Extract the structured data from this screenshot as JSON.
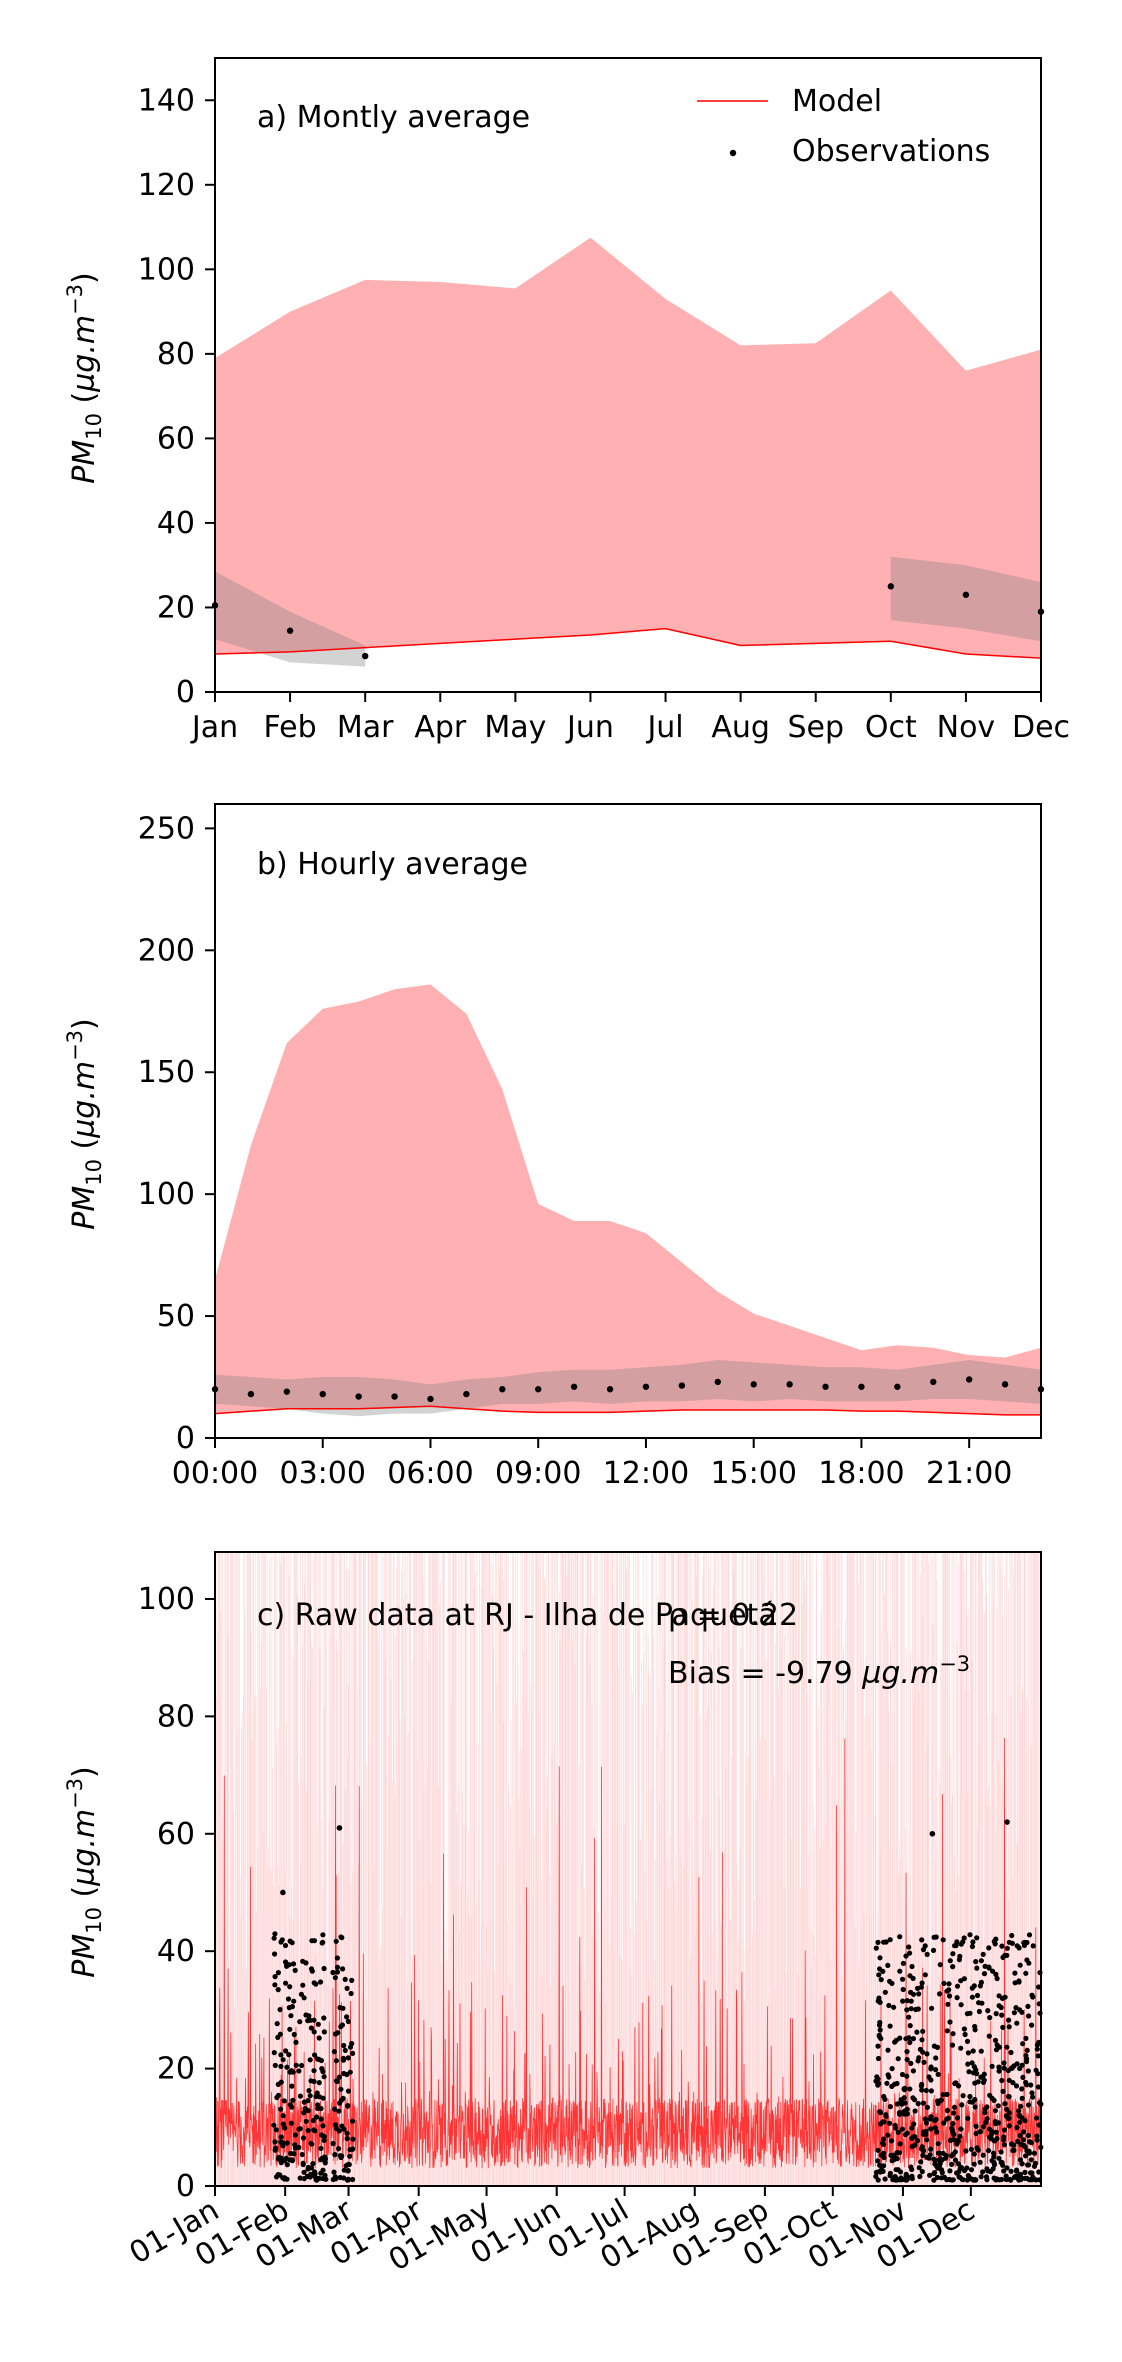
{
  "chart_data": [
    {
      "type": "area",
      "panel_label": "a) Montly average",
      "ylabel": "PM10 (µg.m-3)",
      "xlabel": "",
      "categories": [
        "Jan",
        "Feb",
        "Mar",
        "Apr",
        "May",
        "Jun",
        "Jul",
        "Aug",
        "Sep",
        "Oct",
        "Nov",
        "Dec"
      ],
      "ylim": [
        0,
        150
      ],
      "yticks": [
        0,
        20,
        40,
        60,
        80,
        100,
        120,
        140
      ],
      "legend": {
        "position": "top-right",
        "entries": [
          "Model",
          "Observations"
        ]
      },
      "series": [
        {
          "name": "Model",
          "kind": "line",
          "color": "#ff0000",
          "values": [
            9,
            9.5,
            10.5,
            11.5,
            12.5,
            13.5,
            15,
            11,
            11.5,
            12,
            9,
            8
          ]
        },
        {
          "name": "Model",
          "kind": "band",
          "color": "#ffb0b2",
          "upper": [
            79,
            90,
            97.5,
            97,
            95.5,
            107.5,
            93,
            82,
            82.5,
            95,
            76,
            81
          ],
          "lower": [
            9,
            9.5,
            10.5,
            11.5,
            12.5,
            13.5,
            15,
            11,
            11.5,
            12,
            9,
            8
          ]
        },
        {
          "name": "Observations",
          "kind": "points",
          "color": "#000000",
          "values": [
            20.5,
            14.5,
            8.5,
            null,
            null,
            null,
            null,
            null,
            null,
            25,
            23,
            19
          ]
        },
        {
          "name": "Observations",
          "kind": "band",
          "color": "#808080",
          "upper": [
            28.5,
            19,
            11,
            null,
            null,
            null,
            null,
            null,
            null,
            32,
            30,
            26
          ],
          "lower": [
            12.5,
            7,
            6,
            null,
            null,
            null,
            null,
            null,
            null,
            17,
            15,
            12
          ]
        }
      ]
    },
    {
      "type": "area",
      "panel_label": "b) Hourly average",
      "ylabel": "PM10 (µg.m-3)",
      "xlabel": "",
      "x": [
        0,
        1,
        2,
        3,
        4,
        5,
        6,
        7,
        8,
        9,
        10,
        11,
        12,
        13,
        14,
        15,
        16,
        17,
        18,
        19,
        20,
        21,
        22,
        23
      ],
      "xtick_labels": [
        "00:00",
        "03:00",
        "06:00",
        "09:00",
        "12:00",
        "15:00",
        "18:00",
        "21:00"
      ],
      "xticks": [
        0,
        3,
        6,
        9,
        12,
        15,
        18,
        21
      ],
      "ylim": [
        0,
        260
      ],
      "yticks": [
        0,
        50,
        100,
        150,
        200,
        250
      ],
      "series": [
        {
          "name": "Model",
          "kind": "line",
          "color": "#ff0000",
          "values": [
            10,
            11,
            12,
            12,
            12,
            12.5,
            13,
            12,
            11,
            10.5,
            10.5,
            10.5,
            11,
            11.5,
            11.5,
            11.5,
            11.5,
            11.5,
            11,
            11,
            10.5,
            10,
            9.5,
            9.5
          ]
        },
        {
          "name": "Model",
          "kind": "band",
          "color": "#ffb0b2",
          "upper": [
            65,
            120,
            162,
            176,
            179,
            184,
            186,
            174,
            143,
            96,
            89,
            89,
            84,
            72,
            60,
            51,
            46,
            41,
            36,
            38,
            37,
            34,
            33,
            37
          ],
          "lower": [
            10,
            11,
            12,
            12,
            12,
            12.5,
            13,
            12,
            11,
            10.5,
            10.5,
            10.5,
            11,
            11.5,
            11.5,
            11.5,
            11.5,
            11.5,
            11,
            11,
            10.5,
            10,
            9.5,
            9.5
          ]
        },
        {
          "name": "Observations",
          "kind": "points",
          "color": "#000000",
          "values": [
            20,
            18,
            19,
            18,
            17,
            17,
            16,
            18,
            20,
            20,
            21,
            20,
            21,
            21.5,
            23,
            22,
            22,
            21,
            21,
            21,
            23,
            24,
            22,
            20
          ]
        },
        {
          "name": "Observations",
          "kind": "band",
          "color": "#808080",
          "upper": [
            26,
            25,
            24,
            25,
            25,
            24,
            22,
            24,
            25,
            27,
            28,
            28,
            29,
            30,
            32,
            31,
            30,
            29,
            29,
            28,
            30,
            32,
            30,
            28
          ],
          "lower": [
            14,
            13,
            12,
            10,
            9,
            10,
            10,
            12,
            14,
            14,
            15,
            14,
            15,
            15,
            16,
            15,
            16,
            15,
            15,
            15,
            16,
            16,
            15,
            14
          ]
        }
      ]
    },
    {
      "type": "line",
      "panel_label": "c) Raw data at RJ - Ilha de Paquetá",
      "stats": {
        "rho": "ρ = 0.22",
        "bias": "Bias = -9.79 µg.m-3"
      },
      "ylabel": "PM10 (µg.m-3)",
      "xlabel": "",
      "xtick_labels": [
        "01-Jan",
        "01-Feb",
        "01-Mar",
        "01-Apr",
        "01-May",
        "01-Jun",
        "01-Jul",
        "01-Aug",
        "01-Sep",
        "01-Oct",
        "01-Nov",
        "01-Dec"
      ],
      "xlim_days": [
        0,
        365
      ],
      "ylim": [
        0,
        108
      ],
      "yticks": [
        0,
        20,
        40,
        60,
        80,
        100
      ],
      "series": [
        {
          "name": "Model",
          "kind": "line",
          "color": "#ff2020",
          "description_range": [
            1,
            77
          ]
        },
        {
          "name": "Model",
          "kind": "band",
          "color": "#ffb0b2",
          "description_range": [
            3,
            108
          ]
        },
        {
          "name": "Observations",
          "kind": "points",
          "color": "#000000",
          "segments_days": [
            [
              26,
              36
            ],
            [
              37,
              49
            ],
            [
              52,
              61
            ],
            [
              292,
              365
            ]
          ],
          "peaks": [
            {
              "day": 30,
              "value": 50
            },
            {
              "day": 55,
              "value": 61
            },
            {
              "day": 317,
              "value": 60
            },
            {
              "day": 350,
              "value": 62
            }
          ]
        }
      ]
    }
  ],
  "colors": {
    "model_line": "#ff0000",
    "model_band": "#ffb0b2",
    "obs_band": "#808080",
    "obs_point": "#000000"
  }
}
